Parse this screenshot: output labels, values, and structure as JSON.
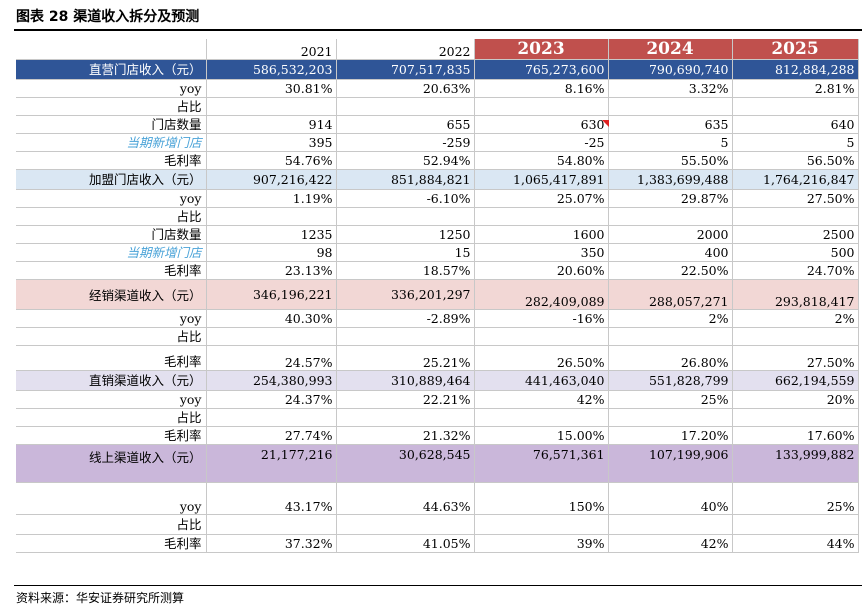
{
  "title": "图表 28  渠道收入拆分及预测",
  "years": [
    "2021",
    "2022",
    "2023",
    "2024",
    "2025"
  ],
  "sections": [
    {
      "label": "直营门店收入（元）",
      "values": [
        "586,532,203",
        "707,517,835",
        "765,273,600",
        "790,690,740",
        "812,884,288"
      ],
      "rows": [
        {
          "label": "yoy",
          "values": [
            "30.81%",
            "20.63%",
            "8.16%",
            "3.32%",
            "2.81%"
          ]
        },
        {
          "label": "占比",
          "values": [
            "",
            "",
            "",
            "",
            ""
          ]
        },
        {
          "label": "门店数量",
          "values": [
            "914",
            "655",
            "630",
            "635",
            "640"
          ]
        },
        {
          "label": "当期新增门店",
          "values": [
            "395",
            "-259",
            "-25",
            "5",
            "5"
          ]
        },
        {
          "label": "毛利率",
          "values": [
            "54.76%",
            "52.94%",
            "54.80%",
            "55.50%",
            "56.50%"
          ]
        }
      ]
    },
    {
      "label": "加盟门店收入（元）",
      "values": [
        "907,216,422",
        "851,884,821",
        "1,065,417,891",
        "1,383,699,488",
        "1,764,216,847"
      ],
      "rows": [
        {
          "label": "yoy",
          "values": [
            "1.19%",
            "-6.10%",
            "25.07%",
            "29.87%",
            "27.50%"
          ]
        },
        {
          "label": "占比",
          "values": [
            "",
            "",
            "",
            "",
            ""
          ]
        },
        {
          "label": "门店数量",
          "values": [
            "1235",
            "1250",
            "1600",
            "2000",
            "2500"
          ]
        },
        {
          "label": "当期新增门店",
          "values": [
            "98",
            "15",
            "350",
            "400",
            "500"
          ]
        },
        {
          "label": "毛利率",
          "values": [
            "23.13%",
            "18.57%",
            "20.60%",
            "22.50%",
            "24.70%"
          ]
        }
      ]
    },
    {
      "label": "经销渠道收入（元）",
      "values": [
        "346,196,221",
        "336,201,297",
        "282,409,089",
        "288,057,271",
        "293,818,417"
      ],
      "rows": [
        {
          "label": "yoy",
          "values": [
            "40.30%",
            "-2.89%",
            "-16%",
            "2%",
            "2%"
          ]
        },
        {
          "label": "占比",
          "values": [
            "",
            "",
            "",
            "",
            ""
          ]
        },
        {
          "label": "毛利率",
          "values": [
            "24.57%",
            "25.21%",
            "26.50%",
            "26.80%",
            "27.50%"
          ]
        }
      ]
    },
    {
      "label": "直销渠道收入（元）",
      "values": [
        "254,380,993",
        "310,889,464",
        "441,463,040",
        "551,828,799",
        "662,194,559"
      ],
      "rows": [
        {
          "label": "yoy",
          "values": [
            "24.37%",
            "22.21%",
            "42%",
            "25%",
            "20%"
          ]
        },
        {
          "label": "占比",
          "values": [
            "",
            "",
            "",
            "",
            ""
          ]
        },
        {
          "label": "毛利率",
          "values": [
            "27.74%",
            "21.32%",
            "15.00%",
            "17.20%",
            "17.60%"
          ]
        }
      ]
    },
    {
      "label": "线上渠道收入（元）",
      "values": [
        "21,177,216",
        "30,628,545",
        "76,571,361",
        "107,199,906",
        "133,999,882"
      ],
      "rows": [
        {
          "label": "yoy",
          "values": [
            "43.17%",
            "44.63%",
            "150%",
            "40%",
            "25%"
          ]
        },
        {
          "label": "占比",
          "values": [
            "",
            "",
            "",
            "",
            ""
          ]
        },
        {
          "label": "毛利率",
          "values": [
            "37.32%",
            "41.05%",
            "39%",
            "42%",
            "44%"
          ]
        }
      ]
    }
  ],
  "source": "资料来源：华安证券研究所测算"
}
